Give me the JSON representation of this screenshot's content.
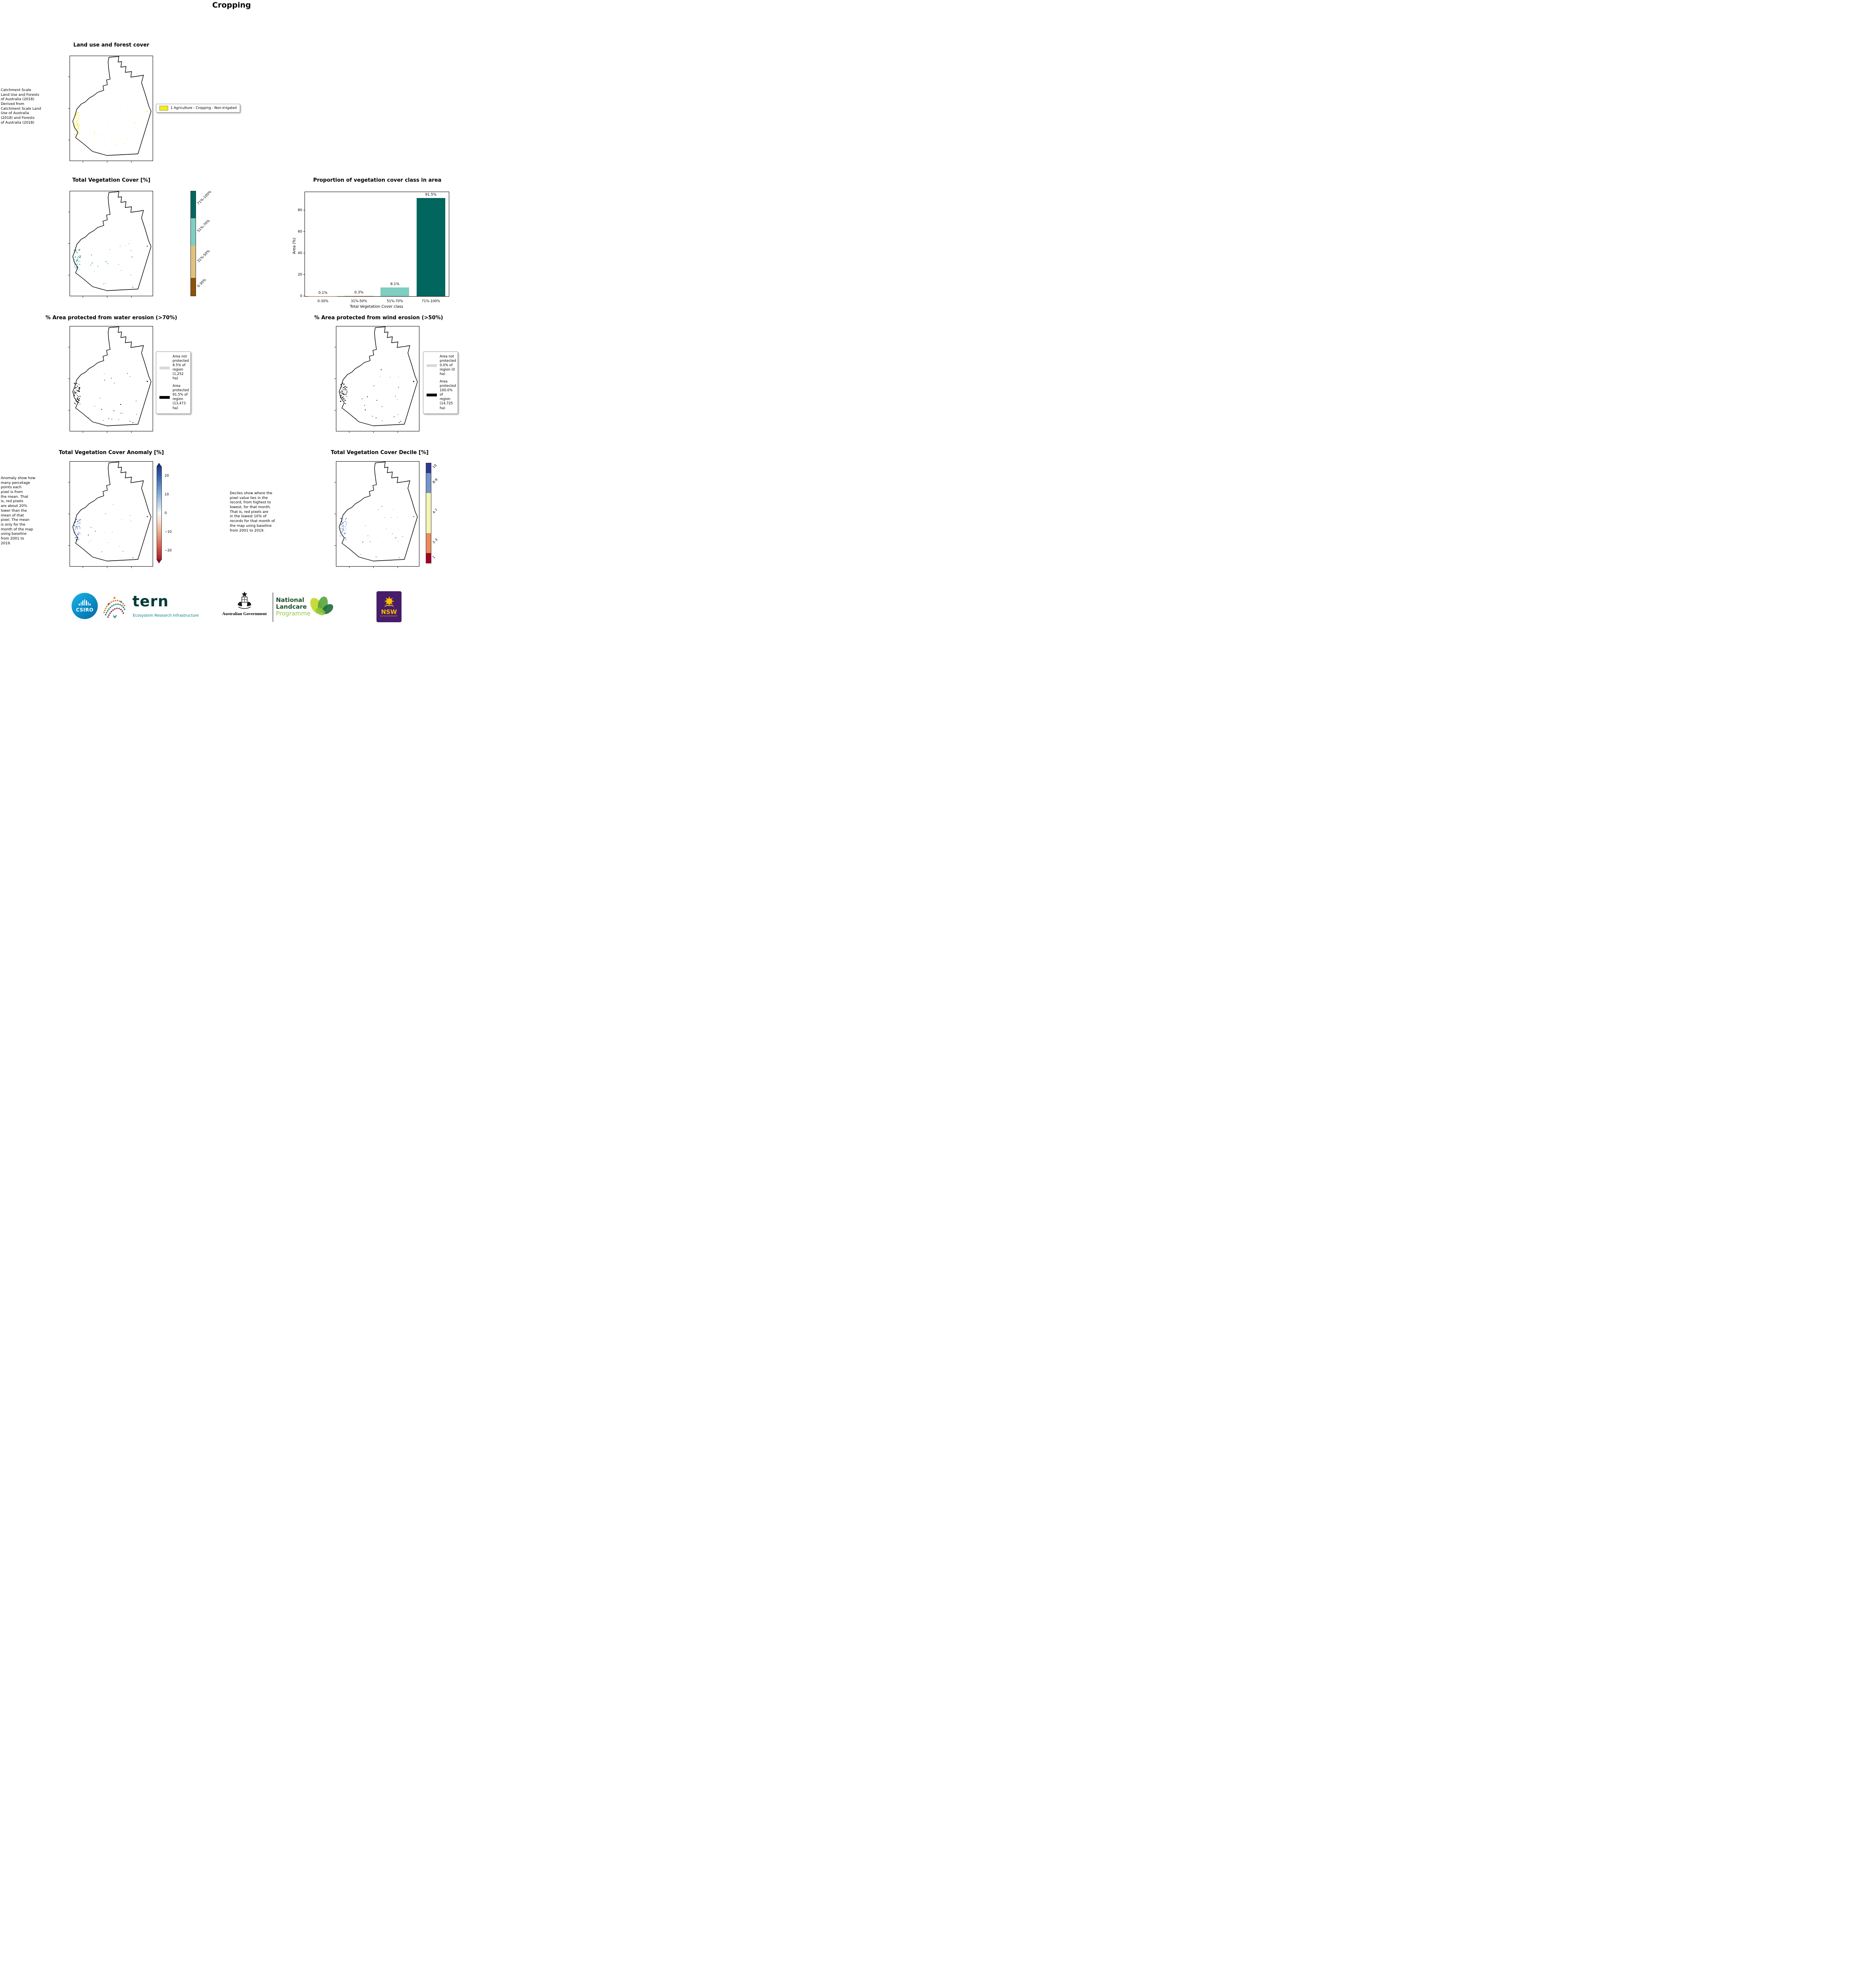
{
  "page": {
    "title": "Cropping"
  },
  "colors": {
    "dark_teal": "#01665e",
    "light_teal": "#80cdc1",
    "tan": "#dfc27d",
    "brown": "#8c510a",
    "crop_yellow": "#f6ee12",
    "legend_gray": "#d9d9d9",
    "ink": "#000000",
    "csiro_blue": "#00a9e0",
    "tern_teal": "#00837b",
    "landcare_dark_green": "#1c4f2a",
    "landcare_light_green": "#8dc63f",
    "nsw_purple": "#471d6a",
    "nsw_gold": "#f9be00"
  },
  "panels": {
    "land_use": {
      "title": "Land use and forest cover",
      "source_note": " Catchment Scale\nLand Use and Forests\nof Australia (2018)\nDerived from\nCatchment Scale Land\nUse of Australia\n(2018) and Forests\nof Australia (2018)",
      "legend": {
        "swatch_color": "#f6ee12",
        "label": "1 Agriculture - Cropping - Non-irrigated"
      },
      "map_colors": [
        "#f6ee12",
        "#fdf53a",
        "#e8de00"
      ]
    },
    "veg_cover": {
      "title": "Total Vegetation Cover [%]",
      "colorbar": [
        {
          "label": "71%-100%",
          "color": "#01665e",
          "span": 26
        },
        {
          "label": "51%-70%",
          "color": "#80cdc1",
          "span": 26
        },
        {
          "label": "31%-50%",
          "color": "#dfc27d",
          "span": 31
        },
        {
          "label": "0-30%",
          "color": "#8c510a",
          "span": 17
        }
      ],
      "map_colors": [
        "#0f7c6e",
        "#5fb8a9",
        "#0a5a50"
      ]
    },
    "water_erosion": {
      "title": "% Area protected from water erosion (>70%)",
      "legend": {
        "not_protected": {
          "swatch_color": "#d9d9d9",
          "text": "Area not\nprotected\n8.5% of\nregion\n(1,252 ha)"
        },
        "protected": {
          "swatch_color": "#000000",
          "text": "Area\nprotected\n91.5% of\nregion\n(13,473\nha)"
        }
      },
      "map_colors": [
        "#000000"
      ]
    },
    "wind_erosion": {
      "title": "% Area protected from wind erosion (>50%)",
      "legend": {
        "not_protected": {
          "swatch_color": "#d9d9d9",
          "text": "Area not\nprotected\n0.0% of\nregion (0\nha)"
        },
        "protected": {
          "swatch_color": "#000000",
          "text": "Area\nprotected\n100.0% of\nregion\n(14,725\nha)"
        }
      },
      "map_colors": [
        "#000000"
      ]
    },
    "anomaly": {
      "title": "Total Vegetation Cover Anomaly [%]",
      "explainer": "Anomaly show how\nmany percetage\npoints each\npixel is from\nthe mean. That\nis, red pixels\nare about 20%\nlower than the\nmean of that\npixel. The mean\nis only for the\nmonth of the map\nusing baseline\nfrom 2001 to\n2019.",
      "colorbar": {
        "colormap": "RdBu",
        "min": -25,
        "max": 25,
        "ticks": [
          {
            "label": "20",
            "value": 20
          },
          {
            "label": "10",
            "value": 10
          },
          {
            "label": "0",
            "value": 0
          },
          {
            "label": "−10",
            "value": -10
          },
          {
            "label": "−20",
            "value": -20
          }
        ]
      },
      "map_colors": [
        "#3753a4",
        "#7ba1d8",
        "#2b3d8f",
        "#9ec7e8"
      ]
    },
    "decile": {
      "title": "Total Vegetation Cover Decile [%]",
      "explainer": "Deciles show where the\npixel value lies in the\nrecord, from highest to\nlowest, for that month.\nThat is, red pixels are\nin the lowest 10% of\nrecords for that month of\nthe map using baseline\nfrom 2001 to 2019.",
      "colorbar": [
        {
          "label": "10",
          "color": "#313695",
          "span": 10
        },
        {
          "label": "8-9",
          "color": "#7495c8",
          "span": 20
        },
        {
          "label": "4-7",
          "color": "#f6f4b3",
          "span": 40
        },
        {
          "label": "2-3",
          "color": "#eb8b5a",
          "span": 20
        },
        {
          "label": "1",
          "color": "#a50026",
          "span": 10
        }
      ],
      "map_colors": [
        "#313695",
        "#5a7ec1",
        "#8fb0dc"
      ]
    }
  },
  "chart_data": {
    "type": "bar",
    "title": "Proportion of vegetation cover class in area",
    "categories": [
      "0-30%",
      "31%-50%",
      "51%-70%",
      "71%-100%"
    ],
    "values": [
      0.1,
      0.3,
      8.1,
      91.5
    ],
    "bar_labels": [
      "0.1%",
      "0.3%",
      "8.1%",
      "91.5%"
    ],
    "bar_colors": [
      "#8c510a",
      "#dfc27d",
      "#80cdc1",
      "#01665e"
    ],
    "xlabel": "Total Vegetation Cover class",
    "ylabel": "Area (%)",
    "yticks": [
      0,
      20,
      40,
      60,
      80
    ],
    "ylim": [
      0,
      97
    ],
    "grid": false,
    "legend_position": "none"
  },
  "footer": {
    "csiro_label": "CSIRO",
    "tern_word": "tern",
    "tern_subtitle": "Ecosystem Research Infrastructure",
    "aus_gov_label": "Australian Government",
    "landcare_line1": "National",
    "landcare_line2": "Landcare",
    "landcare_line3": "Programme",
    "nsw_label": "NSW",
    "nsw_sublabel": "GOVERNMENT"
  }
}
